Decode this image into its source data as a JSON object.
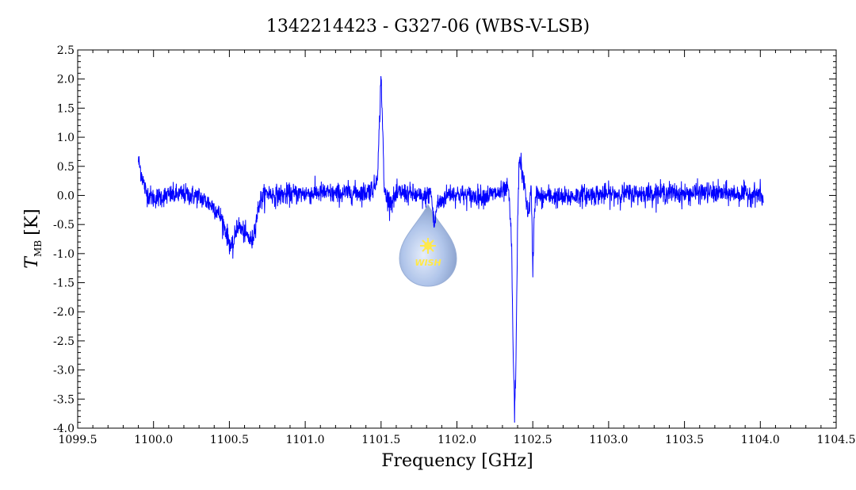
{
  "chart_data": {
    "type": "line",
    "title": "1342214423 - G327-06 (WBS-V-LSB)",
    "xlabel": "Frequency [GHz]",
    "ylabel": {
      "symbol": "T",
      "subscript": "MB",
      "unit": "[K]"
    },
    "xlim": [
      1099.5,
      1104.5
    ],
    "ylim": [
      -4.0,
      2.5
    ],
    "x_ticks": [
      1099.5,
      1100.0,
      1100.5,
      1101.0,
      1101.5,
      1102.0,
      1102.5,
      1103.0,
      1103.5,
      1104.0,
      1104.5
    ],
    "x_tick_labels": [
      "1099.5",
      "1100.0",
      "1100.5",
      "1101.0",
      "1101.5",
      "1102.0",
      "1102.5",
      "1103.0",
      "1103.5",
      "1104.0",
      "1104.5"
    ],
    "y_ticks": [
      2.5,
      2.0,
      1.5,
      1.0,
      0.5,
      0.0,
      -0.5,
      -1.0,
      -1.5,
      -2.0,
      -2.5,
      -3.0,
      -3.5,
      -4.0
    ],
    "y_tick_labels": [
      "2.5",
      "2.0",
      "1.5",
      "1.0",
      "0.5",
      "0.0",
      "-0.5",
      "-1.0",
      "-1.5",
      "-2.0",
      "-2.5",
      "-3.0",
      "-3.5",
      "-4.0"
    ],
    "grid": false,
    "line_color": "#0000ff",
    "series": [
      {
        "x": [
          1099.9,
          1099.95,
          1100.0,
          1100.1,
          1100.2,
          1100.3,
          1100.4,
          1100.45,
          1100.5,
          1100.52,
          1100.55,
          1100.6,
          1100.65,
          1100.7,
          1100.75,
          1100.8,
          1100.9,
          1101.0,
          1101.1,
          1101.2,
          1101.3,
          1101.4,
          1101.46,
          1101.48,
          1101.5,
          1101.51,
          1101.52,
          1101.54,
          1101.57,
          1101.62,
          1101.7,
          1101.78,
          1101.83,
          1101.845,
          1101.85,
          1101.87,
          1101.9,
          1101.95,
          1102.0,
          1102.1,
          1102.2,
          1102.3,
          1102.34,
          1102.36,
          1102.37,
          1102.38,
          1102.39,
          1102.4,
          1102.41,
          1102.42,
          1102.43,
          1102.45,
          1102.47,
          1102.49,
          1102.5,
          1102.51,
          1102.52,
          1102.55,
          1102.6,
          1102.7,
          1102.8,
          1103.0,
          1103.2,
          1103.4,
          1103.5,
          1103.6,
          1103.8,
          1104.0,
          1104.02
        ],
        "y": [
          0.6,
          0.05,
          -0.05,
          0.0,
          0.02,
          -0.02,
          -0.2,
          -0.4,
          -0.8,
          -0.95,
          -0.5,
          -0.65,
          -0.8,
          -0.1,
          0.05,
          0.0,
          0.02,
          0.03,
          0.05,
          0.02,
          0.05,
          0.05,
          0.15,
          0.5,
          2.1,
          1.2,
          0.1,
          -0.05,
          -0.1,
          0.05,
          0.02,
          -0.05,
          0.05,
          -0.4,
          -0.55,
          -0.15,
          -0.1,
          0.05,
          0.02,
          -0.02,
          0.0,
          0.05,
          0.1,
          -0.8,
          -2.6,
          -3.75,
          -2.8,
          -0.4,
          0.55,
          0.6,
          0.35,
          0.1,
          -0.35,
          0.1,
          -1.3,
          -0.3,
          0.05,
          -0.05,
          0.0,
          -0.05,
          0.0,
          0.02,
          0.03,
          0.05,
          0.02,
          0.05,
          0.03,
          0.02,
          -0.1
        ],
        "noise_sigma": 0.09
      }
    ]
  },
  "watermark": {
    "text": "WISH",
    "fill_color": "#a8bfe8",
    "star_color": "#ffe84a"
  }
}
